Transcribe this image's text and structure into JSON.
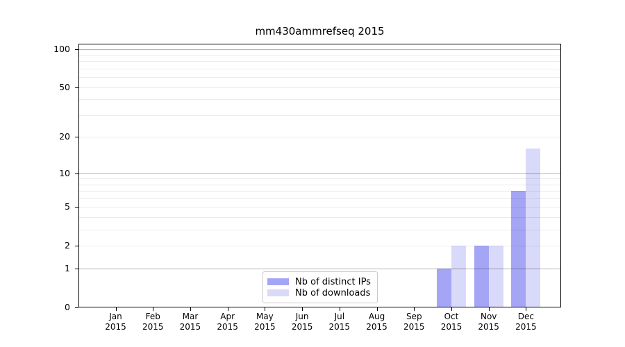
{
  "colors": {
    "distinct_ips_bar": "#a5a5f6",
    "downloads_bar": "#d9d9fa",
    "grid_major": "rgba(0,0,0,0.30)",
    "grid_minor": "rgba(0,0,0,0.08)",
    "axis_line": "#000000",
    "background": "#ffffff"
  },
  "chart_data": {
    "type": "bar",
    "title": "mm430ammrefseq 2015",
    "xlabel": "",
    "ylabel": "",
    "x_tick_labels": [
      [
        "Jan",
        "2015"
      ],
      [
        "Feb",
        "2015"
      ],
      [
        "Mar",
        "2015"
      ],
      [
        "Apr",
        "2015"
      ],
      [
        "May",
        "2015"
      ],
      [
        "Jun",
        "2015"
      ],
      [
        "Jul",
        "2015"
      ],
      [
        "Aug",
        "2015"
      ],
      [
        "Sep",
        "2015"
      ],
      [
        "Oct",
        "2015"
      ],
      [
        "Nov",
        "2015"
      ],
      [
        "Dec",
        "2015"
      ]
    ],
    "series": [
      {
        "name": "Nb of distinct IPs",
        "color": "#a5a5f6",
        "values": [
          0,
          0,
          0,
          0,
          0,
          0,
          0,
          0,
          0,
          1,
          2,
          7
        ]
      },
      {
        "name": "Nb of downloads",
        "color": "#d9d9fa",
        "values": [
          0,
          0,
          0,
          0,
          0,
          0,
          0,
          0,
          0,
          2,
          2,
          16
        ]
      }
    ],
    "yscale": "log1p",
    "ylim": [
      0,
      110
    ],
    "ytick_values": [
      0,
      1,
      2,
      5,
      10,
      20,
      50,
      100
    ],
    "grid": {
      "major_values": [
        1,
        10,
        100
      ],
      "minor_values": [
        2,
        3,
        4,
        5,
        6,
        7,
        8,
        9,
        20,
        30,
        40,
        50,
        60,
        70,
        80,
        90
      ]
    },
    "legend_position": "lower center"
  }
}
